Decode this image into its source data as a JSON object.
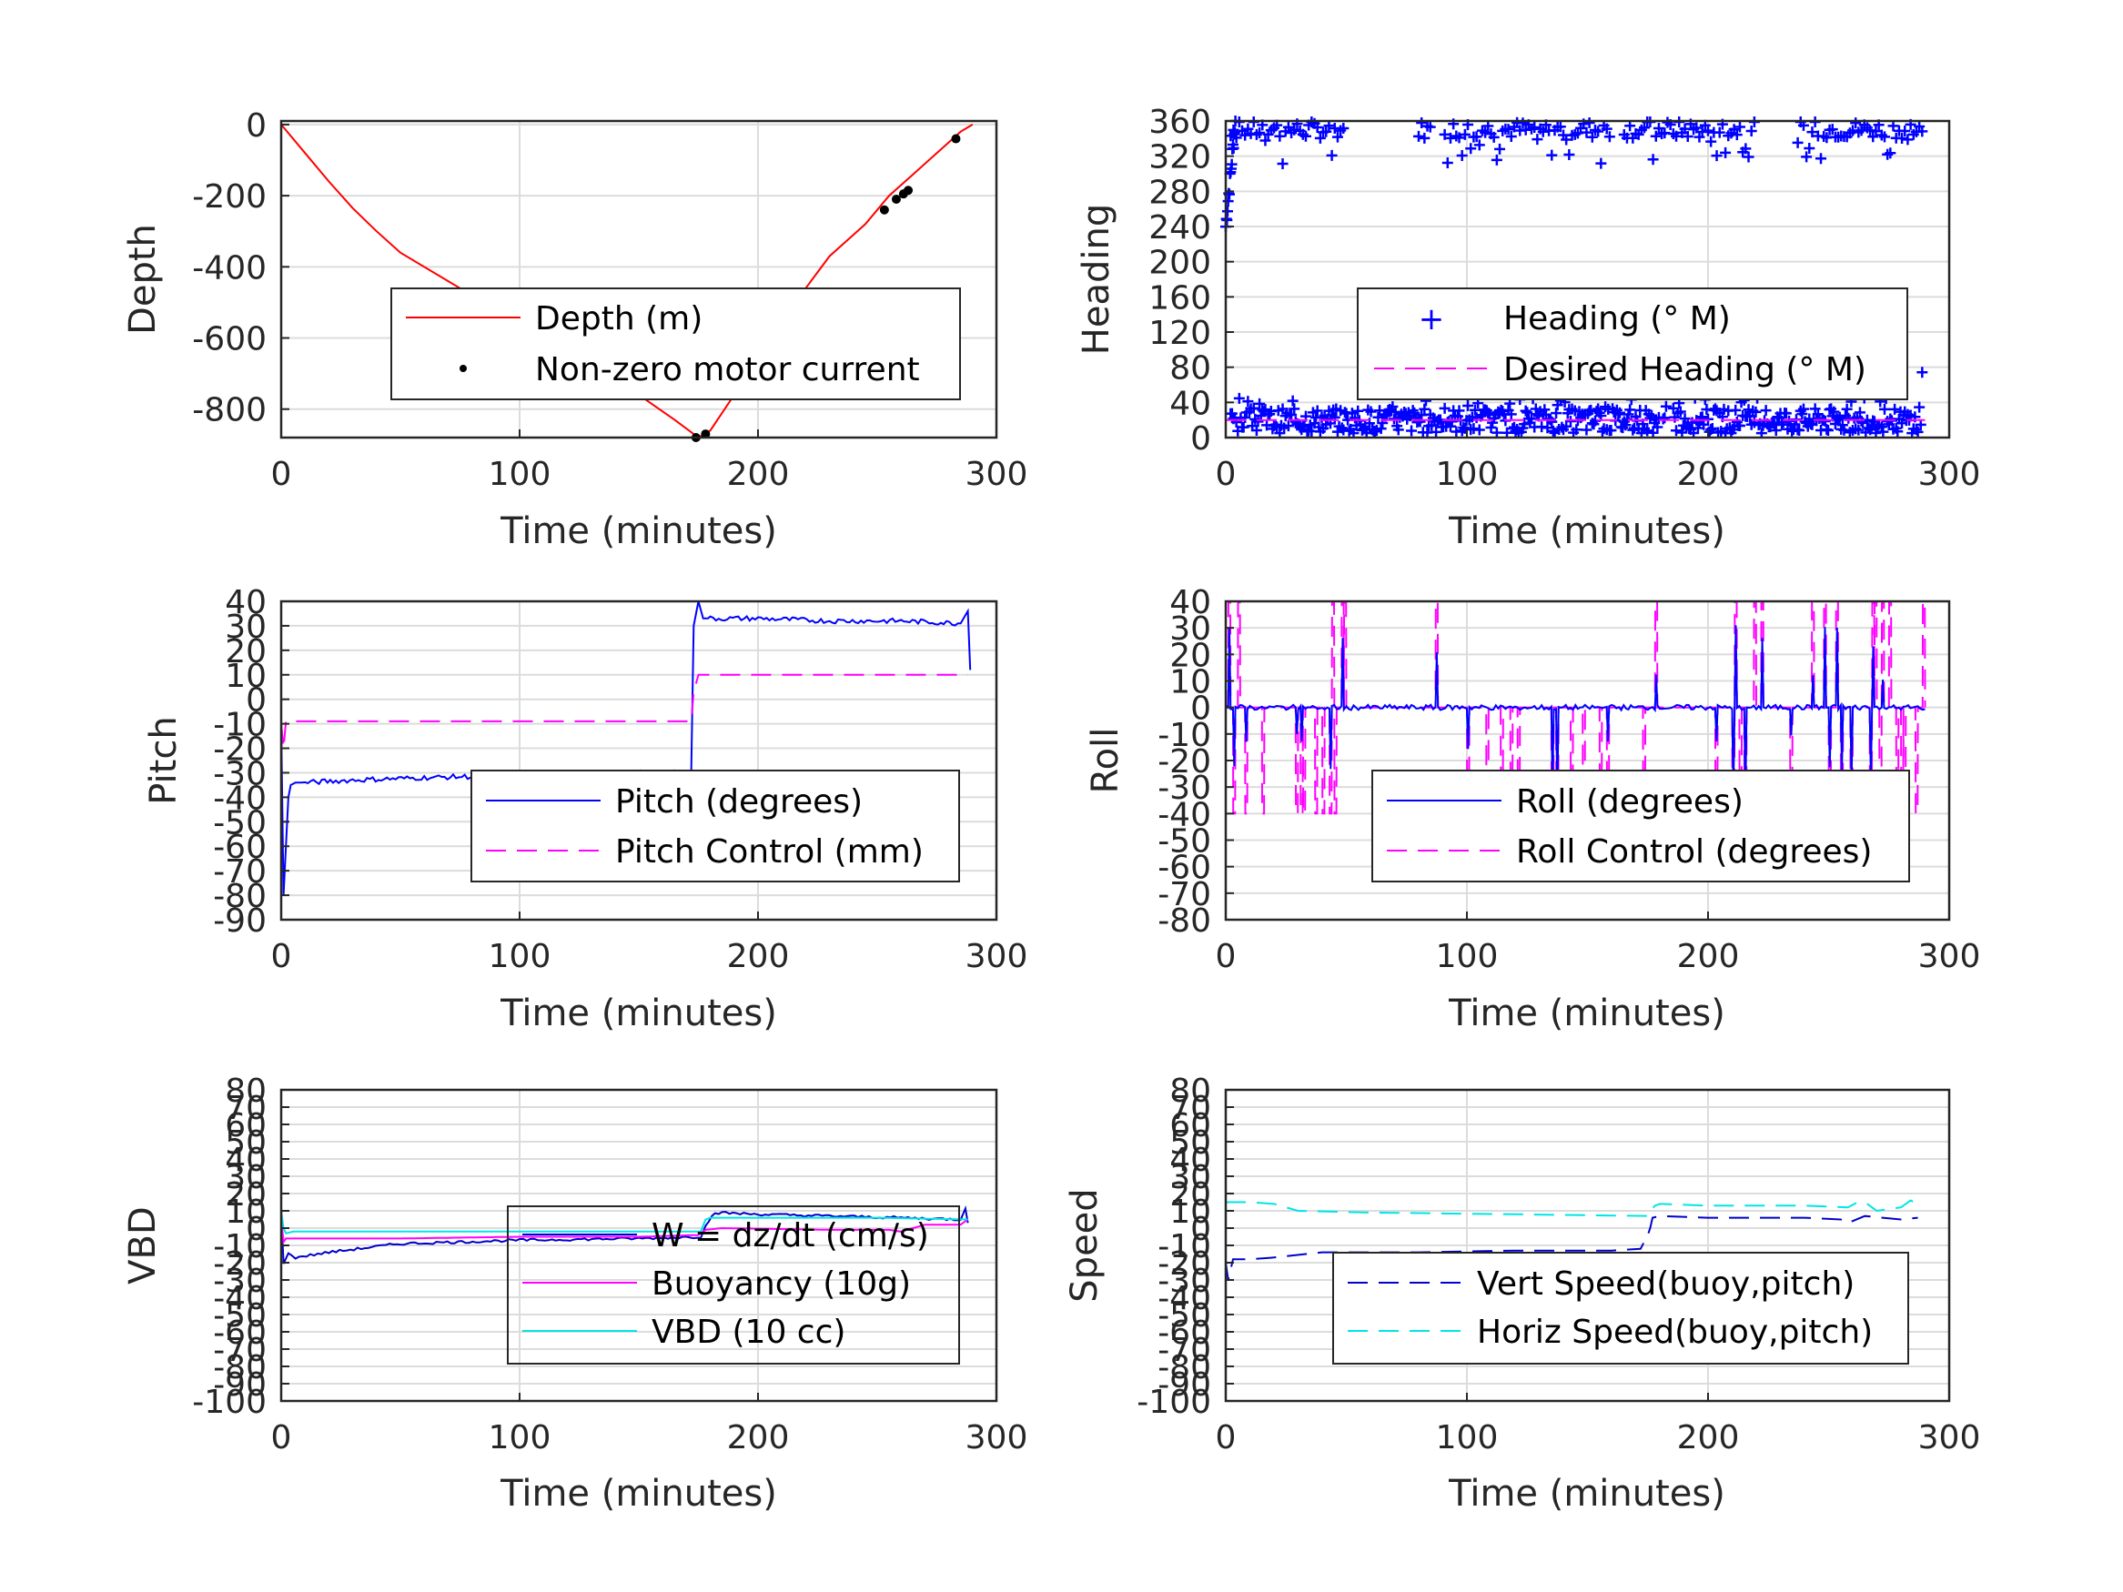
{
  "chart_data": [
    {
      "type": "line",
      "xlabel": "Time (minutes)",
      "ylabel": "Depth",
      "xlim": [
        0,
        300
      ],
      "ylim": [
        -880,
        10
      ],
      "xticks": [
        0,
        100,
        200,
        300
      ],
      "yticks": [
        0,
        -200,
        -400,
        -600,
        -800
      ],
      "legend_box": "center-right",
      "series": [
        {
          "name": "Depth (m)",
          "color": "#ff0000",
          "style": "solid",
          "x": [
            0,
            10,
            20,
            30,
            40,
            50,
            70,
            90,
            110,
            130,
            150,
            165,
            175,
            180,
            190,
            200,
            210,
            220,
            230,
            245,
            255,
            265,
            275,
            285,
            290
          ],
          "y": [
            0,
            -80,
            -160,
            -235,
            -300,
            -360,
            -440,
            -520,
            -600,
            -680,
            -760,
            -830,
            -880,
            -860,
            -760,
            -660,
            -560,
            -460,
            -370,
            -280,
            -200,
            -140,
            -80,
            -20,
            0
          ]
        },
        {
          "name": "Non-zero motor current",
          "color": "#000000",
          "style": "dots",
          "x": [
            174,
            178,
            253,
            258,
            261,
            263,
            283
          ],
          "y": [
            -880,
            -870,
            -240,
            -210,
            -195,
            -185,
            -40
          ]
        }
      ]
    },
    {
      "type": "scatter",
      "xlabel": "Time (minutes)",
      "ylabel": "Heading",
      "xlim": [
        0,
        300
      ],
      "ylim": [
        0,
        360
      ],
      "xticks": [
        0,
        100,
        200,
        300
      ],
      "yticks": [
        0,
        40,
        80,
        120,
        160,
        200,
        240,
        280,
        320,
        360
      ],
      "legend_box": "center-right",
      "series": [
        {
          "name": "Heading (° M)",
          "color": "#0000ff",
          "style": "plus"
        },
        {
          "name": "Desired Heading (° M)",
          "color": "#ff00ff",
          "style": "dashed",
          "x": [
            0,
            290
          ],
          "y": [
            20,
            20
          ]
        }
      ]
    },
    {
      "type": "line",
      "xlabel": "Time (minutes)",
      "ylabel": "Pitch",
      "xlim": [
        0,
        300
      ],
      "ylim": [
        -90,
        40
      ],
      "xticks": [
        0,
        100,
        200,
        300
      ],
      "yticks": [
        40,
        30,
        20,
        10,
        0,
        -10,
        -20,
        -30,
        -40,
        -50,
        -60,
        -70,
        -80,
        -90
      ],
      "legend_box": "lower-right",
      "series": [
        {
          "name": "Pitch (degrees)",
          "color": "#0000ff",
          "style": "solid",
          "x": [
            0,
            1,
            2,
            3,
            4,
            6,
            10,
            30,
            60,
            100,
            140,
            172,
            173,
            175,
            177,
            180,
            200,
            230,
            260,
            285,
            288,
            289
          ],
          "y": [
            -10,
            -80,
            -60,
            -40,
            -35,
            -34,
            -34,
            -33,
            -32,
            -31,
            -30,
            -30,
            30,
            40,
            33,
            33,
            33,
            32,
            32,
            31,
            36,
            12
          ]
        },
        {
          "name": "Pitch Control (mm)",
          "color": "#ff00ff",
          "style": "dashed",
          "x": [
            0,
            1,
            2,
            172,
            173,
            175,
            176,
            288
          ],
          "y": [
            -10,
            -20,
            -9,
            -9,
            3,
            10,
            10,
            10
          ]
        }
      ]
    },
    {
      "type": "line",
      "xlabel": "Time (minutes)",
      "ylabel": "Roll",
      "xlim": [
        0,
        300
      ],
      "ylim": [
        -80,
        40
      ],
      "xticks": [
        0,
        100,
        200,
        300
      ],
      "yticks": [
        40,
        30,
        20,
        10,
        0,
        -10,
        -20,
        -30,
        -40,
        -50,
        -60,
        -70,
        -80
      ],
      "legend_box": "lower-right",
      "series": [
        {
          "name": "Roll (degrees)",
          "color": "#0000ff",
          "style": "solid"
        },
        {
          "name": "Roll Control (degrees)",
          "color": "#ff00ff",
          "style": "dashed"
        }
      ]
    },
    {
      "type": "line",
      "xlabel": "Time (minutes)",
      "ylabel": "VBD",
      "xlim": [
        0,
        300
      ],
      "ylim": [
        -100,
        80
      ],
      "xticks": [
        0,
        100,
        200,
        300
      ],
      "yticks": [
        80,
        70,
        60,
        50,
        40,
        30,
        20,
        10,
        0,
        -10,
        -20,
        -30,
        -40,
        -50,
        -60,
        -70,
        -80,
        -90,
        -100
      ],
      "legend_box": "center-right",
      "series": [
        {
          "name": "W = dz/dt (cm/s)",
          "color": "#0000cc",
          "style": "solid",
          "x": [
            0,
            1,
            3,
            6,
            20,
            50,
            100,
            150,
            176,
            178,
            182,
            200,
            230,
            260,
            285,
            287,
            288
          ],
          "y": [
            10,
            -20,
            -15,
            -17,
            -14,
            -9,
            -7,
            -6,
            -5,
            2,
            9,
            8,
            7,
            6,
            5,
            12,
            3
          ]
        },
        {
          "name": "Buoyancy (10g)",
          "color": "#ff00ff",
          "style": "solid",
          "x": [
            0,
            1,
            2,
            10,
            50,
            100,
            150,
            175,
            178,
            185,
            230,
            255,
            260,
            270,
            285,
            288
          ],
          "y": [
            5,
            -8,
            -6,
            -6,
            -6,
            -5,
            -5,
            -4,
            -1,
            0,
            -1,
            -1,
            -2,
            2,
            2,
            5
          ]
        },
        {
          "name": "VBD (10 cc)",
          "color": "#00e5e5",
          "style": "solid",
          "x": [
            0,
            1,
            2,
            5,
            50,
            100,
            150,
            176,
            178,
            180,
            250,
            288
          ],
          "y": [
            10,
            0,
            -3,
            -2,
            -2,
            -2,
            -2,
            -2,
            5,
            6,
            6,
            5
          ]
        }
      ]
    },
    {
      "type": "line",
      "xlabel": "Time (minutes)",
      "ylabel": "Speed",
      "xlim": [
        0,
        300
      ],
      "ylim": [
        -100,
        80
      ],
      "xticks": [
        0,
        100,
        200,
        300
      ],
      "yticks": [
        80,
        70,
        60,
        50,
        40,
        30,
        20,
        10,
        0,
        -10,
        -20,
        -30,
        -40,
        -50,
        -60,
        -70,
        -80,
        -90,
        -100
      ],
      "legend_box": "lower-right",
      "series": [
        {
          "name": "Vert Speed(buoy,pitch)",
          "color": "#0000cc",
          "style": "dashed",
          "x": [
            0,
            1,
            3,
            10,
            20,
            40,
            80,
            120,
            160,
            172,
            175,
            176,
            177,
            180,
            200,
            240,
            255,
            258,
            265,
            280,
            287
          ],
          "y": [
            -20,
            -30,
            -18,
            -18,
            -17,
            -14,
            -14,
            -13,
            -13,
            -12,
            -4,
            0,
            6,
            7,
            6,
            6,
            5,
            3,
            7,
            5,
            6
          ]
        },
        {
          "name": "Horiz Speed(buoy,pitch)",
          "color": "#00e5e5",
          "style": "dashed",
          "x": [
            0,
            1,
            10,
            20,
            25,
            30,
            60,
            120,
            175,
            176,
            178,
            180,
            200,
            240,
            258,
            262,
            266,
            270,
            280,
            284,
            288
          ],
          "y": [
            15,
            15,
            15,
            14,
            12,
            10,
            9,
            8,
            7,
            10,
            13,
            14,
            13,
            13,
            12,
            15,
            14,
            10,
            12,
            16,
            13
          ]
        }
      ]
    }
  ]
}
